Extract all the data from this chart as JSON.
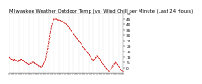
{
  "title": "Milwaukee Weather Outdoor Temp (vs) Wind Chill per Minute (Last 24 Hours)",
  "background_color": "#ffffff",
  "line_color": "#cc0000",
  "grid_color": "#bbbbbb",
  "ylim": [
    -5,
    50
  ],
  "yticks": [
    0,
    5,
    10,
    15,
    20,
    25,
    30,
    35,
    40,
    45,
    50
  ],
  "y_values": [
    10,
    9,
    8,
    8,
    7,
    7,
    8,
    8,
    7,
    7,
    6,
    6,
    7,
    7,
    8,
    8,
    7,
    7,
    6,
    6,
    5,
    5,
    4,
    4,
    3,
    3,
    4,
    4,
    5,
    5,
    5,
    5,
    4,
    4,
    3,
    3,
    2,
    2,
    1,
    1,
    2,
    2,
    3,
    3,
    5,
    7,
    10,
    14,
    18,
    23,
    28,
    33,
    37,
    40,
    42,
    44,
    45,
    45,
    45,
    45,
    44,
    44,
    44,
    44,
    43,
    43,
    43,
    42,
    42,
    41,
    41,
    40,
    39,
    38,
    37,
    36,
    35,
    34,
    33,
    32,
    31,
    30,
    29,
    28,
    27,
    26,
    25,
    24,
    23,
    22,
    21,
    20,
    19,
    18,
    17,
    16,
    15,
    14,
    13,
    12,
    11,
    10,
    9,
    8,
    7,
    7,
    8,
    9,
    10,
    11,
    10,
    9,
    8,
    7,
    6,
    5,
    4,
    3,
    2,
    1,
    0,
    -1,
    -2,
    -3,
    -3,
    -2,
    -1,
    0,
    1,
    2,
    3,
    4,
    5,
    4,
    3,
    2,
    1,
    0,
    -1,
    -2,
    -3,
    -3,
    -2
  ],
  "title_fontsize": 3.8,
  "tick_fontsize": 3.2,
  "linewidth": 0.55,
  "markersize": 0.8
}
